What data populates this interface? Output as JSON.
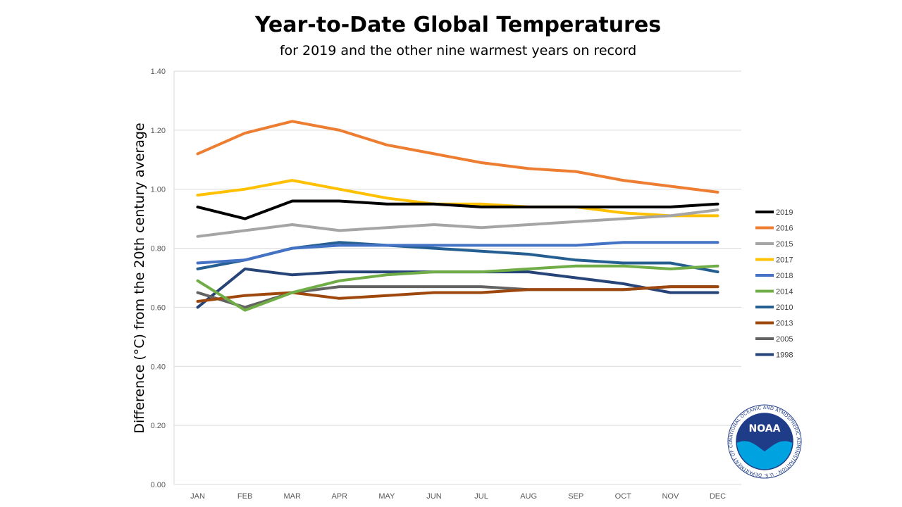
{
  "chart_data": {
    "type": "line",
    "title": "Year-to-Date Global Temperatures",
    "subtitle": "for 2019 and the other nine warmest years on record",
    "ylabel": "Difference (°C) from the 20th century average",
    "xlabel": "",
    "ylim": [
      0,
      1.4
    ],
    "y_ticks": [
      "0.00",
      "0.20",
      "0.40",
      "0.60",
      "0.80",
      "1.00",
      "1.20",
      "1.40"
    ],
    "y_tick_values": [
      0,
      0.2,
      0.4,
      0.6,
      0.8,
      1.0,
      1.2,
      1.4
    ],
    "grid": true,
    "legend_position": "right",
    "categories": [
      "JAN",
      "FEB",
      "MAR",
      "APR",
      "MAY",
      "JUN",
      "JUL",
      "AUG",
      "SEP",
      "OCT",
      "NOV",
      "DEC"
    ],
    "series": [
      {
        "name": "2019",
        "color": "#000000",
        "values": [
          0.94,
          0.9,
          0.96,
          0.96,
          0.95,
          0.95,
          0.94,
          0.94,
          0.94,
          0.94,
          0.94,
          0.95
        ]
      },
      {
        "name": "2016",
        "color": "#ed7d31",
        "values": [
          1.12,
          1.19,
          1.23,
          1.2,
          1.15,
          1.12,
          1.09,
          1.07,
          1.06,
          1.03,
          1.01,
          0.99
        ]
      },
      {
        "name": "2015",
        "color": "#a5a5a5",
        "values": [
          0.84,
          0.86,
          0.88,
          0.86,
          0.87,
          0.88,
          0.87,
          0.88,
          0.89,
          0.9,
          0.91,
          0.93
        ]
      },
      {
        "name": "2017",
        "color": "#ffc000",
        "values": [
          0.98,
          1.0,
          1.03,
          1.0,
          0.97,
          0.95,
          0.95,
          0.94,
          0.94,
          0.92,
          0.91,
          0.91
        ]
      },
      {
        "name": "2018",
        "color": "#4472c4",
        "values": [
          0.75,
          0.76,
          0.8,
          0.81,
          0.81,
          0.81,
          0.81,
          0.81,
          0.81,
          0.82,
          0.82,
          0.82
        ]
      },
      {
        "name": "2014",
        "color": "#70ad47",
        "values": [
          0.69,
          0.59,
          0.65,
          0.69,
          0.71,
          0.72,
          0.72,
          0.73,
          0.74,
          0.74,
          0.73,
          0.74
        ]
      },
      {
        "name": "2010",
        "color": "#255e91",
        "values": [
          0.73,
          0.76,
          0.8,
          0.82,
          0.81,
          0.8,
          0.79,
          0.78,
          0.76,
          0.75,
          0.75,
          0.72
        ]
      },
      {
        "name": "2013",
        "color": "#9e480e",
        "values": [
          0.62,
          0.64,
          0.65,
          0.63,
          0.64,
          0.65,
          0.65,
          0.66,
          0.66,
          0.66,
          0.67,
          0.67
        ]
      },
      {
        "name": "2005",
        "color": "#636363",
        "values": [
          0.65,
          0.6,
          0.65,
          0.67,
          0.67,
          0.67,
          0.67,
          0.66,
          0.66,
          0.66,
          0.67,
          0.67
        ]
      },
      {
        "name": "1998",
        "color": "#264478",
        "values": [
          0.6,
          0.73,
          0.71,
          0.72,
          0.72,
          0.72,
          0.72,
          0.72,
          0.7,
          0.68,
          0.65,
          0.65
        ]
      }
    ]
  },
  "logo": {
    "name": "NOAA",
    "ring_text": "NATIONAL OCEANIC AND ATMOSPHERIC ADMINISTRATION · U.S. DEPARTMENT OF COMMERCE ·",
    "colors": {
      "navy": "#1f3c88",
      "sky": "#00a3e0"
    }
  }
}
